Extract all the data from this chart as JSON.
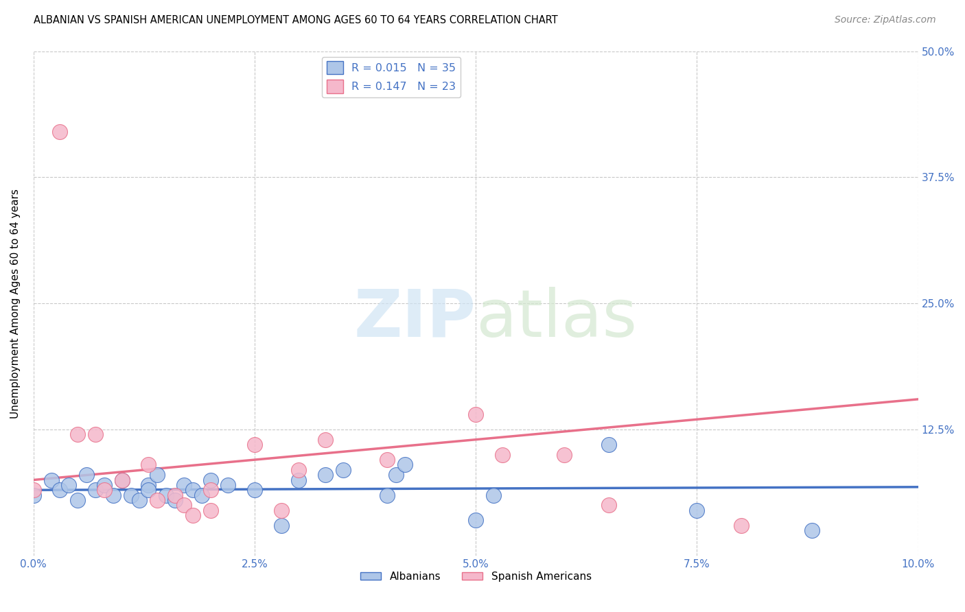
{
  "title": "ALBANIAN VS SPANISH AMERICAN UNEMPLOYMENT AMONG AGES 60 TO 64 YEARS CORRELATION CHART",
  "source": "Source: ZipAtlas.com",
  "ylabel": "Unemployment Among Ages 60 to 64 years",
  "xlim": [
    0.0,
    0.1
  ],
  "ylim": [
    0.0,
    0.5
  ],
  "xtick_labels": [
    "0.0%",
    "2.5%",
    "5.0%",
    "7.5%",
    "10.0%"
  ],
  "xtick_vals": [
    0.0,
    0.025,
    0.05,
    0.075,
    0.1
  ],
  "ytick_labels": [
    "12.5%",
    "25.0%",
    "37.5%",
    "50.0%"
  ],
  "ytick_vals": [
    0.125,
    0.25,
    0.375,
    0.5
  ],
  "albanian_R": 0.015,
  "albanian_N": 35,
  "spanish_R": 0.147,
  "spanish_N": 23,
  "albanian_color": "#aec6e8",
  "spanish_color": "#f5b8cb",
  "albanian_line_color": "#4472c4",
  "spanish_line_color": "#e8708a",
  "albanian_x": [
    0.0,
    0.002,
    0.003,
    0.004,
    0.005,
    0.006,
    0.007,
    0.008,
    0.009,
    0.01,
    0.011,
    0.012,
    0.013,
    0.013,
    0.014,
    0.015,
    0.016,
    0.017,
    0.018,
    0.019,
    0.02,
    0.022,
    0.025,
    0.028,
    0.03,
    0.033,
    0.035,
    0.04,
    0.041,
    0.042,
    0.05,
    0.052,
    0.065,
    0.075,
    0.088
  ],
  "albanian_y": [
    0.06,
    0.075,
    0.065,
    0.07,
    0.055,
    0.08,
    0.065,
    0.07,
    0.06,
    0.075,
    0.06,
    0.055,
    0.07,
    0.065,
    0.08,
    0.06,
    0.055,
    0.07,
    0.065,
    0.06,
    0.075,
    0.07,
    0.065,
    0.03,
    0.075,
    0.08,
    0.085,
    0.06,
    0.08,
    0.09,
    0.035,
    0.06,
    0.11,
    0.045,
    0.025
  ],
  "spanish_x": [
    0.0,
    0.003,
    0.005,
    0.007,
    0.008,
    0.01,
    0.013,
    0.014,
    0.016,
    0.017,
    0.018,
    0.02,
    0.02,
    0.025,
    0.028,
    0.03,
    0.033,
    0.04,
    0.05,
    0.053,
    0.06,
    0.065,
    0.08
  ],
  "spanish_y": [
    0.065,
    0.42,
    0.12,
    0.12,
    0.065,
    0.075,
    0.09,
    0.055,
    0.06,
    0.05,
    0.04,
    0.065,
    0.045,
    0.11,
    0.045,
    0.085,
    0.115,
    0.095,
    0.14,
    0.1,
    0.1,
    0.05,
    0.03
  ],
  "albanian_line_x": [
    0.0,
    0.1
  ],
  "albanian_line_y": [
    0.065,
    0.068
  ],
  "spanish_line_x": [
    0.0,
    0.1
  ],
  "spanish_line_y": [
    0.075,
    0.155
  ]
}
